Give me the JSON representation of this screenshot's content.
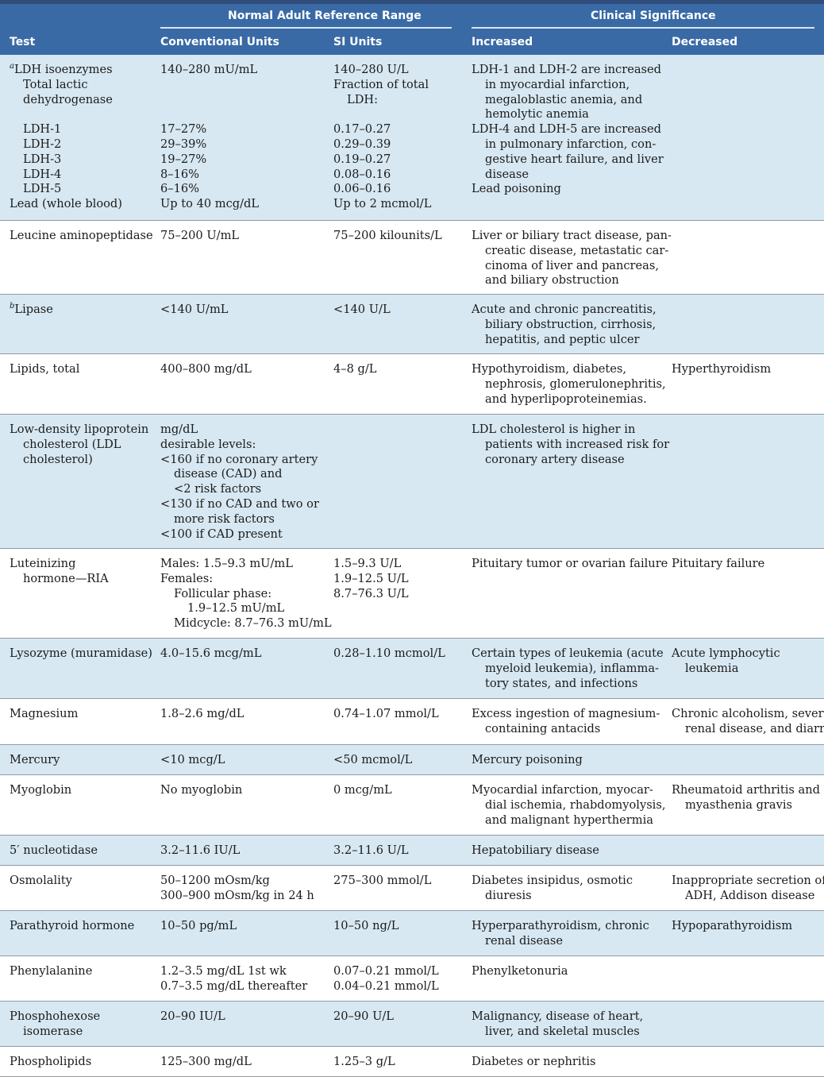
{
  "header": {
    "group_normal": "Normal Adult Reference Range",
    "group_clinical": "Clinical Significance",
    "col_test": "Test",
    "col_conventional": "Conventional Units",
    "col_si": "SI Units",
    "col_increased": "Increased",
    "col_decreased": "Decreased"
  },
  "rows": [
    {
      "test": [
        {
          "sup": "a",
          "t": "LDH isoenzymes"
        },
        {
          "t": "Total lactic",
          "i": 1
        },
        {
          "t": "dehydrogenase",
          "i": 1
        },
        {
          "t": ""
        },
        {
          "t": "LDH-1",
          "i": 1
        },
        {
          "t": "LDH-2",
          "i": 1
        },
        {
          "t": "LDH-3",
          "i": 1
        },
        {
          "t": "LDH-4",
          "i": 1
        },
        {
          "t": "LDH-5",
          "i": 1
        },
        {
          "t": "Lead (whole blood)"
        }
      ],
      "conv": [
        {
          "t": "140–280 mU/mL"
        },
        {
          "t": ""
        },
        {
          "t": ""
        },
        {
          "t": ""
        },
        {
          "t": "17–27%"
        },
        {
          "t": "29–39%"
        },
        {
          "t": "19–27%"
        },
        {
          "t": "8–16%"
        },
        {
          "t": "6–16%"
        },
        {
          "t": "Up to 40 mcg/dL"
        }
      ],
      "si": [
        {
          "t": "140–280 U/L"
        },
        {
          "t": "Fraction of total"
        },
        {
          "t": "LDH:",
          "i": 1
        },
        {
          "t": ""
        },
        {
          "t": "0.17–0.27"
        },
        {
          "t": "0.29–0.39"
        },
        {
          "t": "0.19–0.27"
        },
        {
          "t": "0.08–0.16"
        },
        {
          "t": "0.06–0.16"
        },
        {
          "t": "Up to 2 mcmol/L"
        }
      ],
      "inc": [
        {
          "t": "LDH-1 and LDH-2 are increased"
        },
        {
          "t": "in myocardial infarction,",
          "i": 1
        },
        {
          "t": "megaloblastic anemia, and",
          "i": 1
        },
        {
          "t": "hemolytic anemia",
          "i": 1
        },
        {
          "t": "LDH-4 and LDH-5 are increased"
        },
        {
          "t": "in pulmonary infarction, con-",
          "i": 1
        },
        {
          "t": "gestive heart failure, and liver",
          "i": 1
        },
        {
          "t": "disease",
          "i": 1
        },
        {
          "t": "Lead poisoning"
        }
      ],
      "dec": []
    },
    {
      "test": [
        {
          "t": "Leucine aminopeptidase"
        }
      ],
      "conv": [
        {
          "t": "75–200 U/mL"
        }
      ],
      "si": [
        {
          "t": "75–200 kilounits/L"
        }
      ],
      "inc": [
        {
          "t": "Liver or biliary tract disease, pan-"
        },
        {
          "t": "creatic disease, metastatic car-",
          "i": 1
        },
        {
          "t": "cinoma of liver and pancreas,",
          "i": 1
        },
        {
          "t": "and biliary obstruction",
          "i": 1
        }
      ],
      "dec": []
    },
    {
      "test": [
        {
          "sup": "b",
          "t": "Lipase"
        }
      ],
      "conv": [
        {
          "t": "<140 U/mL"
        }
      ],
      "si": [
        {
          "t": "<140 U/L"
        }
      ],
      "inc": [
        {
          "t": "Acute and chronic pancreatitis,"
        },
        {
          "t": "biliary obstruction, cirrhosis,",
          "i": 1
        },
        {
          "t": "hepatitis, and peptic ulcer",
          "i": 1
        }
      ],
      "dec": []
    },
    {
      "test": [
        {
          "t": "Lipids, total"
        }
      ],
      "conv": [
        {
          "t": "400–800 mg/dL"
        }
      ],
      "si": [
        {
          "t": "4–8 g/L"
        }
      ],
      "inc": [
        {
          "t": "Hypothyroidism, diabetes,"
        },
        {
          "t": "nephrosis, glomerulonephritis,",
          "i": 1
        },
        {
          "t": "and hyperlipoproteinemias.",
          "i": 1
        }
      ],
      "dec": [
        {
          "t": "Hyperthyroidism"
        }
      ]
    },
    {
      "test": [
        {
          "t": "Low-density lipoprotein"
        },
        {
          "t": "cholesterol (LDL",
          "i": 1
        },
        {
          "t": "cholesterol)",
          "i": 1
        }
      ],
      "conv": [
        {
          "t": "mg/dL"
        },
        {
          "t": "desirable levels:"
        },
        {
          "t": "<160 if no coronary artery"
        },
        {
          "t": "disease (CAD) and",
          "i": 1
        },
        {
          "t": "<2 risk factors",
          "i": 1
        },
        {
          "t": "<130 if no CAD and two or"
        },
        {
          "t": "more risk factors",
          "i": 1
        },
        {
          "t": "<100 if CAD present"
        }
      ],
      "si": [],
      "inc": [
        {
          "t": "LDL cholesterol is higher in"
        },
        {
          "t": "patients with increased risk for",
          "i": 1
        },
        {
          "t": "coronary artery disease",
          "i": 1
        }
      ],
      "dec": []
    },
    {
      "test": [
        {
          "t": "Luteinizing"
        },
        {
          "t": "hormone—RIA",
          "i": 1
        }
      ],
      "conv": [
        {
          "t": "Males: 1.5–9.3 mU/mL"
        },
        {
          "t": "Females:"
        },
        {
          "t": "Follicular phase:",
          "i": 1
        },
        {
          "t": "1.9–12.5 mU/mL",
          "i": 2
        },
        {
          "t": "Midcycle: 8.7–76.3 mU/mL",
          "i": 1
        }
      ],
      "si": [
        {
          "t": "1.5–9.3 U/L"
        },
        {
          "t": "1.9–12.5 U/L"
        },
        {
          "t": "8.7–76.3 U/L"
        }
      ],
      "inc": [
        {
          "t": "Pituitary tumor or ovarian failure"
        }
      ],
      "dec": [
        {
          "t": "Pituitary failure"
        }
      ]
    },
    {
      "test": [
        {
          "t": "Lysozyme (muramidase)"
        }
      ],
      "conv": [
        {
          "t": "4.0–15.6 mcg/mL"
        }
      ],
      "si": [
        {
          "t": "0.28–1.10 mcmol/L"
        }
      ],
      "inc": [
        {
          "t": "Certain types of leukemia (acute"
        },
        {
          "t": "myeloid leukemia), inflamma-",
          "i": 1
        },
        {
          "t": "tory states, and infections",
          "i": 1
        }
      ],
      "dec": [
        {
          "t": "Acute lymphocytic"
        },
        {
          "t": "leukemia",
          "i": 1
        }
      ]
    },
    {
      "test": [
        {
          "t": "Magnesium"
        }
      ],
      "conv": [
        {
          "t": "1.8–2.6 mg/dL"
        }
      ],
      "si": [
        {
          "t": "0.74–1.07 mmol/L"
        }
      ],
      "inc": [
        {
          "t": "Excess ingestion of magnesium-"
        },
        {
          "t": "containing antacids",
          "i": 1
        }
      ],
      "dec": [
        {
          "t": "Chronic alcoholism, severe"
        },
        {
          "t": "renal disease, and diarrhea",
          "i": 1
        }
      ]
    },
    {
      "test": [
        {
          "t": "Mercury"
        }
      ],
      "conv": [
        {
          "t": "<10 mcg/L"
        }
      ],
      "si": [
        {
          "t": "<50 mcmol/L"
        }
      ],
      "inc": [
        {
          "t": "Mercury poisoning"
        }
      ],
      "dec": []
    },
    {
      "test": [
        {
          "t": "Myoglobin"
        }
      ],
      "conv": [
        {
          "t": "No myoglobin"
        }
      ],
      "si": [
        {
          "t": "0 mcg/mL"
        }
      ],
      "inc": [
        {
          "t": "Myocardial infarction, myocar-"
        },
        {
          "t": "dial ischemia, rhabdomyolysis,",
          "i": 1
        },
        {
          "t": "and malignant hyperthermia",
          "i": 1
        }
      ],
      "dec": [
        {
          "t": "Rheumatoid arthritis and"
        },
        {
          "t": "myasthenia gravis",
          "i": 1
        }
      ]
    },
    {
      "test": [
        {
          "t": "5′ nucleotidase"
        }
      ],
      "conv": [
        {
          "t": "3.2–11.6 IU/L"
        }
      ],
      "si": [
        {
          "t": "3.2–11.6 U/L"
        }
      ],
      "inc": [
        {
          "t": "Hepatobiliary disease"
        }
      ],
      "dec": []
    },
    {
      "test": [
        {
          "t": "Osmolality"
        }
      ],
      "conv": [
        {
          "t": "50–1200 mOsm/kg"
        },
        {
          "t": "300–900 mOsm/kg in 24 h"
        }
      ],
      "si": [
        {
          "t": "275–300 mmol/L"
        }
      ],
      "inc": [
        {
          "t": "Diabetes insipidus, osmotic"
        },
        {
          "t": "diuresis",
          "i": 1
        }
      ],
      "dec": [
        {
          "t": "Inappropriate secretion of"
        },
        {
          "t": "ADH, Addison disease",
          "i": 1
        }
      ]
    },
    {
      "test": [
        {
          "t": "Parathyroid hormone"
        }
      ],
      "conv": [
        {
          "t": "10–50 pg/mL"
        }
      ],
      "si": [
        {
          "t": "10–50 ng/L"
        }
      ],
      "inc": [
        {
          "t": "Hyperparathyroidism, chronic"
        },
        {
          "t": "renal disease",
          "i": 1
        }
      ],
      "dec": [
        {
          "t": "Hypoparathyroidism"
        }
      ]
    },
    {
      "test": [
        {
          "t": "Phenylalanine"
        }
      ],
      "conv": [
        {
          "t": "1.2–3.5 mg/dL 1st wk"
        },
        {
          "t": "0.7–3.5 mg/dL thereafter"
        }
      ],
      "si": [
        {
          "t": "0.07–0.21 mmol/L"
        },
        {
          "t": "0.04–0.21 mmol/L"
        }
      ],
      "inc": [
        {
          "t": "Phenylketonuria"
        }
      ],
      "dec": []
    },
    {
      "test": [
        {
          "t": "Phosphohexose"
        },
        {
          "t": "isomerase",
          "i": 1
        }
      ],
      "conv": [
        {
          "t": "20–90 IU/L"
        }
      ],
      "si": [
        {
          "t": "20–90 U/L"
        }
      ],
      "inc": [
        {
          "t": "Malignancy, disease of heart,"
        },
        {
          "t": "liver, and skeletal muscles",
          "i": 1
        }
      ],
      "dec": []
    },
    {
      "test": [
        {
          "t": "Phospholipids"
        }
      ],
      "conv": [
        {
          "t": "125–300 mg/dL"
        }
      ],
      "si": [
        {
          "t": "1.25–3 g/L"
        }
      ],
      "inc": [
        {
          "t": "Diabetes or nephritis"
        }
      ],
      "dec": []
    }
  ]
}
